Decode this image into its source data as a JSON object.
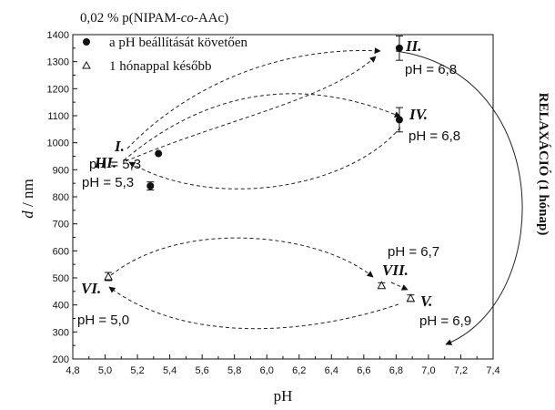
{
  "chart_data": {
    "type": "scatter",
    "title": "0,02 % p(NIPAM-co-AAc)",
    "title_parts": [
      "0,02 % p(NIPAM-",
      "co",
      "-AAc)"
    ],
    "xlabel": "pH",
    "ylabel_var": "d",
    "ylabel_unit": " / nm",
    "xlim": [
      4.8,
      7.4
    ],
    "ylim": [
      200,
      1400
    ],
    "xticks": [
      "4,8",
      "5,0",
      "5,2",
      "5,4",
      "5,6",
      "5,8",
      "6,0",
      "6,2",
      "6,4",
      "6,6",
      "6,8",
      "7,0",
      "7,2",
      "7,4"
    ],
    "yticks": [
      "200",
      "300",
      "400",
      "500",
      "600",
      "700",
      "800",
      "900",
      "1000",
      "1100",
      "1200",
      "1300",
      "1400"
    ],
    "grid": false,
    "legend_position": "top-left",
    "series": [
      {
        "name": "a pH beállítását követően",
        "marker": "filled-circle",
        "points": [
          {
            "id": "I.",
            "x": 5.33,
            "y": 960,
            "err": 0,
            "label": "pH = 5,3"
          },
          {
            "id": "II.",
            "x": 6.82,
            "y": 1350,
            "err": 45,
            "label": "pH = 6,8"
          },
          {
            "id": "III.",
            "x": 5.28,
            "y": 840,
            "err": 15,
            "label": "pH = 5,3"
          },
          {
            "id": "IV.",
            "x": 6.82,
            "y": 1085,
            "err": 45,
            "label": "pH = 6,8"
          }
        ]
      },
      {
        "name": "1 hónappal később",
        "marker": "open-triangle",
        "points": [
          {
            "id": "V.",
            "x": 6.89,
            "y": 425,
            "err": 12,
            "label": "pH = 6,9"
          },
          {
            "id": "VI.",
            "x": 5.02,
            "y": 505,
            "err": 15,
            "label": "pH = 5,0"
          },
          {
            "id": "VII.",
            "x": 6.71,
            "y": 472,
            "err": 10,
            "label": "pH = 6,7"
          }
        ]
      }
    ],
    "side_annotation": "RELAXÁCIÓ (1 hónap)"
  }
}
